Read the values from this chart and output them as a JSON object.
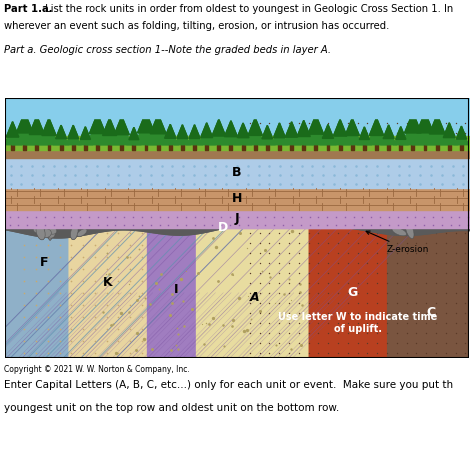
{
  "title_bold": "Part 1.a.",
  "title_rest": " List the rock units in order from oldest to youngest in Geologic Cross Section 1. In",
  "title2": "wherever an event such as folding, tilting, erosion, or intrusion has occurred.",
  "subtitle": "Part a. Geologic cross section 1--Note the graded beds in layer A.",
  "copyright": "Copyright © 2021 W. W. Norton & Company, Inc.",
  "footer1": "Enter Capital Letters (A, B, C, etc...) only for each unit or event.  Make sure you put th",
  "footer2": "youngest unit on the top row and oldest unit on the bottom row.",
  "bg_color": "#ffffff",
  "fig_width": 4.74,
  "fig_height": 4.58,
  "color_sky": "#87CEEB",
  "color_grass_bright": "#6aaa2a",
  "color_soil": "#8B7355",
  "color_B": "#AECCE8",
  "color_H": "#C8956A",
  "color_J": "#C49AC8",
  "color_D": "#5a5a5a",
  "color_F": "#8FB0C8",
  "color_K": "#E8D5A0",
  "color_I": "#A07DC0",
  "color_A": "#E8DCA0",
  "color_G": "#B84020",
  "color_C": "#7A5540",
  "tree_dark": "#1a6b1a",
  "tree_mid": "#2d8a2d",
  "tree_trunk": "#5c3310"
}
